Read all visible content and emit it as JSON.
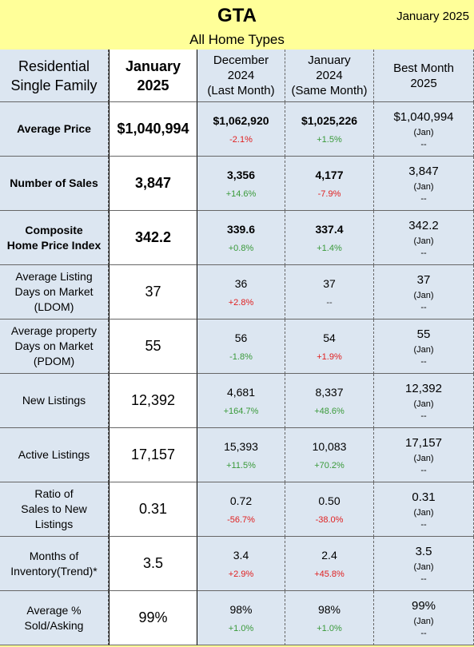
{
  "header": {
    "title": "GTA",
    "date": "January 2025",
    "subtitle": "All Home Types"
  },
  "table": {
    "columns": [
      "Residential\nSingle Family",
      "January\n2025",
      "December\n2024\n(Last Month)",
      "January\n2024\n(Same Month)",
      "Best Month\n2025"
    ],
    "rows": [
      {
        "label": "Average Price",
        "value": "$1,040,994",
        "last_month": {
          "value": "$1,062,920",
          "change": "-2.1%",
          "color": "#e02020"
        },
        "same_month": {
          "value": "$1,025,226",
          "change": "+1.5%",
          "color": "#3a9a3a"
        },
        "best": {
          "value": "$1,040,994",
          "month": "(Jan)",
          "note": "--"
        }
      },
      {
        "label": "Number of Sales",
        "value": "3,847",
        "last_month": {
          "value": "3,356",
          "change": "+14.6%",
          "color": "#3a9a3a"
        },
        "same_month": {
          "value": "4,177",
          "change": "-7.9%",
          "color": "#e02020"
        },
        "best": {
          "value": "3,847",
          "month": "(Jan)",
          "note": "--"
        }
      },
      {
        "label": "Composite\nHome Price Index",
        "value": "342.2",
        "last_month": {
          "value": "339.6",
          "change": "+0.8%",
          "color": "#3a9a3a"
        },
        "same_month": {
          "value": "337.4",
          "change": "+1.4%",
          "color": "#3a9a3a"
        },
        "best": {
          "value": "342.2",
          "month": "(Jan)",
          "note": "--"
        }
      },
      {
        "label": "Average Listing\nDays on Market\n(LDOM)",
        "value": "37",
        "last_month": {
          "value": "36",
          "change": "+2.8%",
          "color": "#e02020"
        },
        "same_month": {
          "value": "37",
          "change": "--",
          "color": "#333333"
        },
        "best": {
          "value": "37",
          "month": "(Jan)",
          "note": "--"
        }
      },
      {
        "label": "Average property\nDays on Market\n(PDOM)",
        "value": "55",
        "last_month": {
          "value": "56",
          "change": "-1.8%",
          "color": "#3a9a3a"
        },
        "same_month": {
          "value": "54",
          "change": "+1.9%",
          "color": "#e02020"
        },
        "best": {
          "value": "55",
          "month": "(Jan)",
          "note": "--"
        }
      },
      {
        "label": "New Listings",
        "value": "12,392",
        "last_month": {
          "value": "4,681",
          "change": "+164.7%",
          "color": "#3a9a3a"
        },
        "same_month": {
          "value": "8,337",
          "change": "+48.6%",
          "color": "#3a9a3a"
        },
        "best": {
          "value": "12,392",
          "month": "(Jan)",
          "note": "--"
        }
      },
      {
        "label": "Active Listings",
        "value": "17,157",
        "last_month": {
          "value": "15,393",
          "change": "+11.5%",
          "color": "#3a9a3a"
        },
        "same_month": {
          "value": "10,083",
          "change": "+70.2%",
          "color": "#3a9a3a"
        },
        "best": {
          "value": "17,157",
          "month": "(Jan)",
          "note": "--"
        }
      },
      {
        "label": "Ratio of\nSales to New\nListings",
        "value": "0.31",
        "last_month": {
          "value": "0.72",
          "change": "-56.7%",
          "color": "#e02020"
        },
        "same_month": {
          "value": "0.50",
          "change": "-38.0%",
          "color": "#e02020"
        },
        "best": {
          "value": "0.31",
          "month": "(Jan)",
          "note": "--"
        }
      },
      {
        "label": "Months of\nInventory(Trend)*",
        "value": "3.5",
        "last_month": {
          "value": "3.4",
          "change": "+2.9%",
          "color": "#e02020"
        },
        "same_month": {
          "value": "2.4",
          "change": "+45.8%",
          "color": "#e02020"
        },
        "best": {
          "value": "3.5",
          "month": "(Jan)",
          "note": "--"
        }
      },
      {
        "label": "Average %\nSold/Asking",
        "value": "99%",
        "last_month": {
          "value": "98%",
          "change": "+1.0%",
          "color": "#3a9a3a"
        },
        "same_month": {
          "value": "98%",
          "change": "+1.0%",
          "color": "#3a9a3a"
        },
        "best": {
          "value": "99%",
          "month": "(Jan)",
          "note": "--"
        }
      }
    ]
  }
}
